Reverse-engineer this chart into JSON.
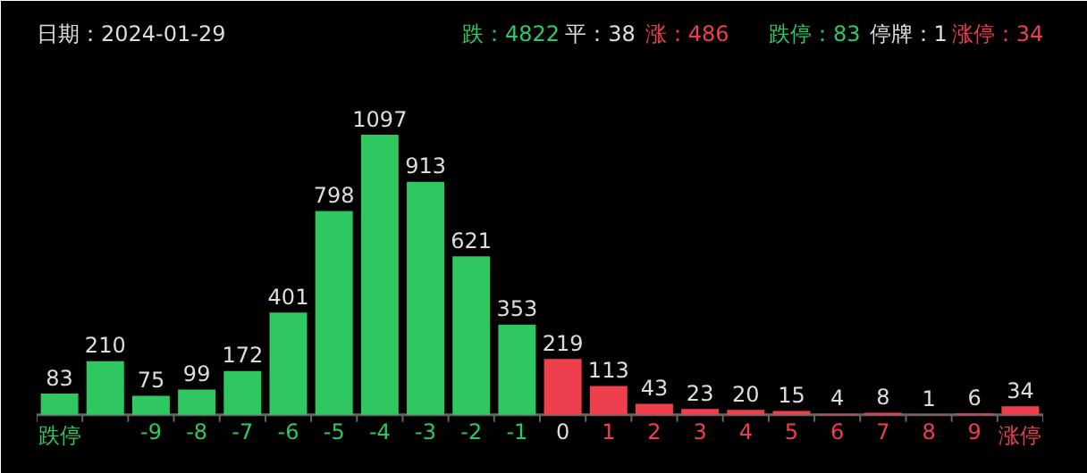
{
  "chart_data": {
    "type": "bar",
    "categories": [
      "跌停",
      null,
      "-9",
      "-8",
      "-7",
      "-6",
      "-5",
      "-4",
      "-3",
      "-2",
      "-1",
      "0",
      "1",
      "2",
      "3",
      "4",
      "5",
      "6",
      "7",
      "8",
      "9",
      "涨停"
    ],
    "values": [
      83,
      210,
      75,
      99,
      172,
      401,
      798,
      1097,
      913,
      621,
      353,
      219,
      113,
      43,
      23,
      20,
      15,
      4,
      8,
      1,
      6,
      34
    ],
    "colors": [
      "#2ec760",
      "#2ec760",
      "#2ec760",
      "#2ec760",
      "#2ec760",
      "#2ec760",
      "#2ec760",
      "#2ec760",
      "#2ec760",
      "#2ec760",
      "#2ec760",
      "#ee3f4d",
      "#ee3f4d",
      "#ee3f4d",
      "#ee3f4d",
      "#ee3f4d",
      "#ee3f4d",
      "#ee3f4d",
      "#ee3f4d",
      "#ee3f4d",
      "#ee3f4d",
      "#ee3f4d"
    ],
    "data_labels": true,
    "annotations": [
      "日期：2024-01-29",
      "跌：4822",
      "平：38",
      "涨：486",
      "跌停：83",
      "停牌：1",
      "涨停：34"
    ]
  }
}
